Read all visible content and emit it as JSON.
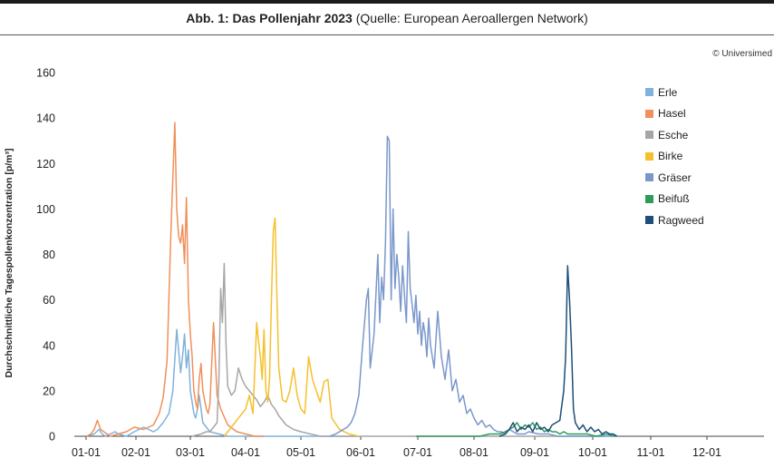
{
  "header": {
    "title": "Abb. 1: Das Pollenjahr 2023",
    "source": "(Quelle: European Aeroallergen Network)",
    "credit": "© Universimed"
  },
  "chart_data": {
    "type": "line",
    "title": "Abb. 1: Das Pollenjahr 2023",
    "xlabel": "",
    "ylabel": "Durchschnittliche Tagespollenkonzentration [p/m³]",
    "ylim": [
      0,
      160
    ],
    "yticks": [
      0,
      20,
      40,
      60,
      80,
      100,
      120,
      140,
      160
    ],
    "x_categories": [
      "01-01",
      "02-01",
      "03-01",
      "04-01",
      "05-01",
      "06-01",
      "07-01",
      "08-01",
      "09-01",
      "10-01",
      "11-01",
      "12-01"
    ],
    "xlim_days": [
      0,
      365
    ],
    "grid": false,
    "legend_position": "right",
    "series": [
      {
        "name": "Erle",
        "color": "#7FB2DC",
        "x": [
          0,
          5,
          8,
          10,
          12,
          15,
          18,
          20,
          25,
          30,
          35,
          40,
          42,
          45,
          48,
          50,
          52,
          54,
          55,
          56,
          57,
          58,
          59,
          60,
          61,
          62,
          63,
          64,
          66,
          68,
          70,
          75,
          80,
          90,
          100,
          120,
          150
        ],
        "y": [
          0,
          1,
          3,
          1,
          0,
          1,
          2,
          1,
          0,
          2,
          4,
          2,
          3,
          6,
          10,
          20,
          47,
          28,
          35,
          45,
          30,
          38,
          20,
          15,
          10,
          8,
          12,
          18,
          6,
          4,
          2,
          1,
          0,
          0,
          0,
          0,
          0
        ]
      },
      {
        "name": "Hasel",
        "color": "#F0905A",
        "x": [
          0,
          3,
          5,
          7,
          9,
          11,
          13,
          15,
          20,
          25,
          30,
          35,
          40,
          43,
          45,
          47,
          49,
          51,
          52,
          53,
          54,
          55,
          56,
          57,
          58,
          59,
          60,
          61,
          62,
          63,
          64,
          65,
          66,
          67,
          68,
          69,
          70,
          72,
          74,
          76,
          80,
          85,
          90,
          95,
          100
        ],
        "y": [
          0,
          1,
          3,
          7,
          3,
          2,
          1,
          0,
          1,
          2,
          4,
          3,
          5,
          10,
          17,
          33,
          90,
          138,
          100,
          88,
          85,
          93,
          76,
          105,
          60,
          45,
          35,
          20,
          15,
          12,
          25,
          32,
          20,
          16,
          12,
          10,
          14,
          50,
          18,
          12,
          5,
          2,
          1,
          0,
          0
        ]
      },
      {
        "name": "Esche",
        "color": "#A6A6A6",
        "x": [
          60,
          65,
          68,
          70,
          72,
          74,
          75,
          76,
          77,
          78,
          79,
          80,
          82,
          84,
          86,
          88,
          90,
          92,
          94,
          96,
          98,
          100,
          102,
          104,
          106,
          108,
          110,
          112,
          114,
          116,
          120,
          125,
          130,
          140,
          150,
          160,
          180,
          200,
          220,
          240,
          250,
          260,
          270,
          280
        ],
        "y": [
          0,
          1,
          2,
          2,
          4,
          6,
          25,
          65,
          50,
          76,
          40,
          22,
          18,
          20,
          30,
          25,
          22,
          20,
          18,
          16,
          13,
          15,
          18,
          14,
          12,
          9,
          7,
          5,
          4,
          3,
          2,
          1,
          0,
          0,
          0,
          0,
          0,
          0,
          0,
          0,
          0,
          0,
          0,
          0
        ]
      },
      {
        "name": "Birke",
        "color": "#F5C02E",
        "x": [
          78,
          80,
          82,
          84,
          86,
          88,
          90,
          92,
          94,
          95,
          96,
          97,
          98,
          99,
          100,
          101,
          102,
          103,
          104,
          105,
          106,
          107,
          108,
          110,
          112,
          114,
          116,
          118,
          120,
          122,
          124,
          126,
          128,
          130,
          132,
          134,
          136,
          140,
          145,
          150
        ],
        "y": [
          0,
          2,
          4,
          6,
          8,
          10,
          12,
          18,
          10,
          30,
          50,
          42,
          35,
          25,
          47,
          20,
          15,
          25,
          60,
          90,
          96,
          60,
          30,
          16,
          15,
          20,
          30,
          18,
          12,
          10,
          35,
          25,
          20,
          15,
          24,
          25,
          8,
          3,
          1,
          0
        ]
      },
      {
        "name": "Gräser",
        "color": "#7B98CB",
        "x": [
          135,
          138,
          140,
          142,
          144,
          146,
          148,
          150,
          152,
          154,
          155,
          156,
          158,
          160,
          161,
          162,
          163,
          164,
          165,
          166,
          167,
          168,
          169,
          170,
          171,
          172,
          173,
          174,
          175,
          176,
          177,
          178,
          179,
          180,
          181,
          182,
          183,
          184,
          185,
          186,
          187,
          188,
          190,
          192,
          194,
          196,
          198,
          200,
          202,
          204,
          206,
          208,
          210,
          212,
          214,
          216,
          218,
          220,
          222,
          224,
          226,
          228,
          230,
          232,
          234,
          236,
          238,
          240,
          245,
          250,
          255,
          260,
          265,
          270,
          275,
          280,
          285
        ],
        "y": [
          0,
          1,
          2,
          3,
          4,
          6,
          10,
          18,
          40,
          60,
          65,
          30,
          45,
          80,
          50,
          70,
          60,
          85,
          132,
          130,
          60,
          100,
          65,
          80,
          70,
          55,
          75,
          62,
          50,
          90,
          65,
          58,
          50,
          62,
          45,
          55,
          40,
          50,
          45,
          35,
          52,
          40,
          30,
          55,
          35,
          25,
          38,
          20,
          25,
          15,
          18,
          10,
          12,
          8,
          5,
          7,
          4,
          5,
          3,
          2,
          2,
          1,
          3,
          2,
          1,
          1,
          1,
          2,
          1,
          1,
          0,
          0,
          0,
          0,
          0,
          0,
          0
        ]
      },
      {
        "name": "Beifuß",
        "color": "#2E9B5A",
        "x": [
          180,
          190,
          200,
          205,
          210,
          215,
          220,
          225,
          228,
          230,
          232,
          234,
          236,
          238,
          240,
          242,
          244,
          246,
          248,
          250,
          252,
          254,
          256,
          258,
          260,
          262,
          265,
          270,
          275,
          280,
          285
        ],
        "y": [
          0,
          0,
          0,
          0,
          0,
          0,
          1,
          1,
          2,
          3,
          4,
          6,
          3,
          5,
          4,
          6,
          3,
          4,
          2,
          3,
          2,
          2,
          1,
          2,
          1,
          1,
          1,
          1,
          0,
          1,
          0
        ]
      },
      {
        "name": "Ragweed",
        "color": "#1E4E79",
        "x": [
          225,
          228,
          230,
          232,
          234,
          236,
          238,
          240,
          242,
          244,
          246,
          248,
          250,
          252,
          254,
          256,
          258,
          259,
          260,
          261,
          262,
          263,
          264,
          266,
          268,
          270,
          272,
          274,
          276,
          278,
          280,
          282,
          284,
          286
        ],
        "y": [
          0,
          1,
          3,
          6,
          2,
          4,
          3,
          5,
          2,
          6,
          3,
          4,
          2,
          5,
          6,
          7,
          20,
          35,
          75,
          60,
          40,
          12,
          6,
          3,
          5,
          2,
          4,
          2,
          3,
          1,
          2,
          1,
          1,
          0
        ]
      }
    ]
  }
}
